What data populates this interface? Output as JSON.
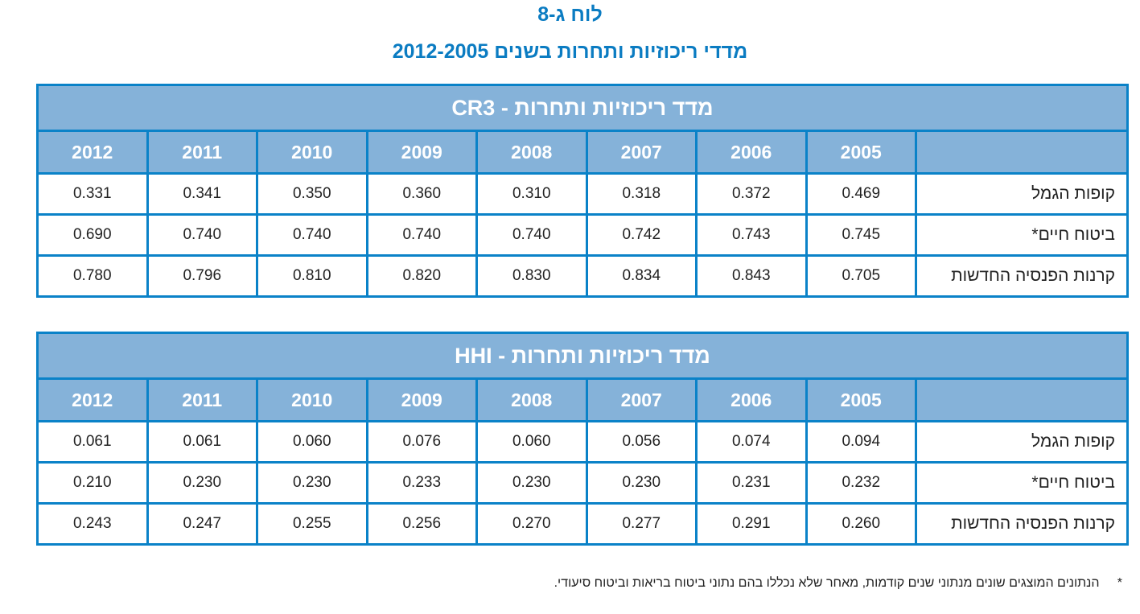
{
  "title": "לוח ג-8",
  "subtitle": "מדדי ריכוזיות ותחרות בשנים 2012-2005",
  "years": [
    "2005",
    "2006",
    "2007",
    "2008",
    "2009",
    "2010",
    "2011",
    "2012"
  ],
  "tables": [
    {
      "caption": "מדד ריכוזיות ותחרות - CR3",
      "rows": [
        {
          "label": "קופות הגמל",
          "values": [
            "0.469",
            "0.372",
            "0.318",
            "0.310",
            "0.360",
            "0.350",
            "0.341",
            "0.331"
          ]
        },
        {
          "label": "ביטוח חיים*",
          "values": [
            "0.745",
            "0.743",
            "0.742",
            "0.740",
            "0.740",
            "0.740",
            "0.740",
            "0.690"
          ]
        },
        {
          "label": "קרנות הפנסיה החדשות",
          "values": [
            "0.705",
            "0.843",
            "0.834",
            "0.830",
            "0.820",
            "0.810",
            "0.796",
            "0.780"
          ]
        }
      ]
    },
    {
      "caption": "מדד ריכוזיות ותחרות - HHI",
      "rows": [
        {
          "label": "קופות הגמל",
          "values": [
            "0.094",
            "0.074",
            "0.056",
            "0.060",
            "0.076",
            "0.060",
            "0.061",
            "0.061"
          ]
        },
        {
          "label": "ביטוח חיים*",
          "values": [
            "0.232",
            "0.231",
            "0.230",
            "0.230",
            "0.233",
            "0.230",
            "0.230",
            "0.210"
          ]
        },
        {
          "label": "קרנות הפנסיה החדשות",
          "values": [
            "0.260",
            "0.291",
            "0.277",
            "0.270",
            "0.256",
            "0.255",
            "0.247",
            "0.243"
          ]
        }
      ]
    }
  ],
  "footnote": {
    "marker": "*",
    "text": "הנתונים המוצגים שונים מנתוני שנים קודמות, מאחר שלא נכללו בהם נתוני ביטוח בריאות וביטוח סיעודי."
  },
  "colors": {
    "accent": "#0b7cc2",
    "header_bg": "#85b2d9",
    "border": "#0a82c8"
  }
}
